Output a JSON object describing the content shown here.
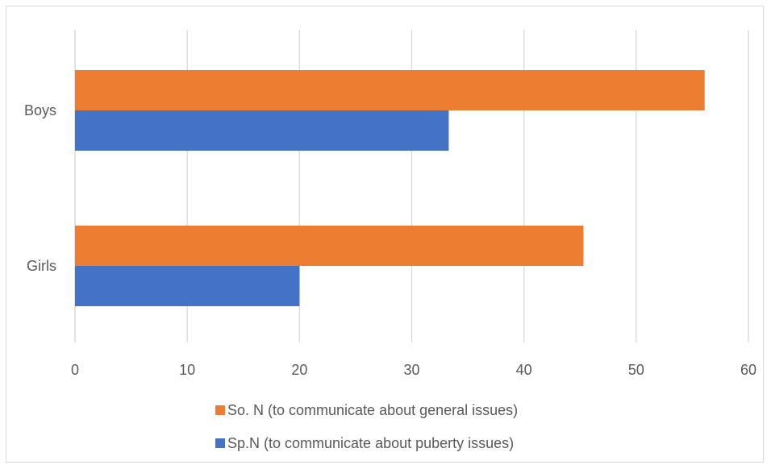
{
  "chart_data": {
    "type": "bar",
    "orientation": "horizontal",
    "categories": [
      "Boys",
      "Girls"
    ],
    "series": [
      {
        "name": "So. N (to communicate about general issues)",
        "color": "#ED7D31",
        "values": [
          56.1,
          45.3
        ]
      },
      {
        "name": "Sp.N (to communicate about puberty issues)",
        "color": "#4472C4",
        "values": [
          33.3,
          20.0
        ]
      }
    ],
    "xlim": [
      0,
      60
    ],
    "xticks": [
      0,
      10,
      20,
      30,
      40,
      50,
      60
    ],
    "grid": true,
    "legend_position": "bottom"
  }
}
